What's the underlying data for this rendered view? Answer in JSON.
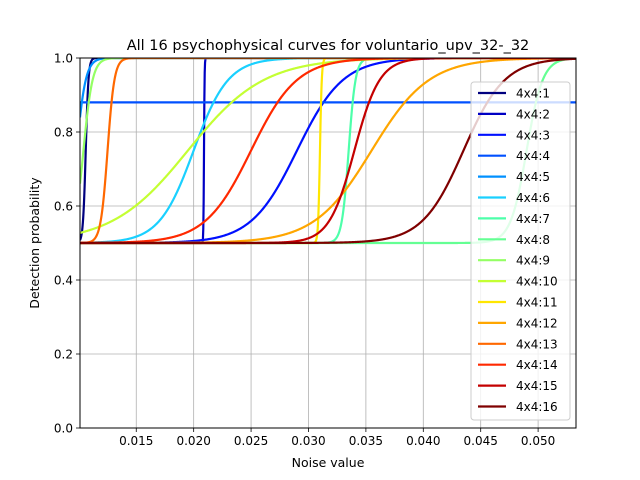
{
  "chart_data": {
    "type": "line",
    "title": "All 16 psychophysical curves for voluntario_upv_32-_32",
    "xlabel": "Noise value",
    "ylabel": "Detection probability",
    "xlim": [
      0.0101,
      0.0533
    ],
    "ylim": [
      0.0,
      1.0
    ],
    "xticks": [
      0.015,
      0.02,
      0.025,
      0.03,
      0.035,
      0.04,
      0.045,
      0.05
    ],
    "xtick_labels": [
      "0.015",
      "0.020",
      "0.025",
      "0.030",
      "0.035",
      "0.040",
      "0.045",
      "0.050"
    ],
    "yticks": [
      0.0,
      0.2,
      0.4,
      0.6,
      0.8,
      1.0
    ],
    "ytick_labels": [
      "0.0",
      "0.2",
      "0.4",
      "0.6",
      "0.8",
      "1.0"
    ],
    "grid": true,
    "legend_position": "right",
    "series": [
      {
        "name": "4x4:1",
        "color": "#00007f",
        "kind": "logistic",
        "mu": 0.0106,
        "s": 0.00012
      },
      {
        "name": "4x4:2",
        "color": "#0000c4",
        "kind": "logistic",
        "mu": 0.0209,
        "s": 2.5e-05
      },
      {
        "name": "4x4:3",
        "color": "#0010ff",
        "kind": "logistic",
        "mu": 0.029,
        "s": 0.002
      },
      {
        "name": "4x4:4",
        "color": "#0050ff",
        "kind": "constant",
        "value": 0.88
      },
      {
        "name": "4x4:5",
        "color": "#0090ff",
        "kind": "logistic",
        "mu": 0.0098,
        "s": 0.0004
      },
      {
        "name": "4x4:6",
        "color": "#1ad0ff",
        "kind": "logistic",
        "mu": 0.02,
        "s": 0.0015
      },
      {
        "name": "4x4:7",
        "color": "#4dffaa",
        "kind": "logistic",
        "mu": 0.0335,
        "s": 0.0003
      },
      {
        "name": "4x4:8",
        "color": "#64ff93",
        "kind": "logistic",
        "mu": 0.049,
        "s": 0.0007
      },
      {
        "name": "4x4:9",
        "color": "#94ff64",
        "kind": "logistic",
        "mu": 0.0104,
        "s": 0.0004
      },
      {
        "name": "4x4:10",
        "color": "#c4ff33",
        "kind": "logistic",
        "mu": 0.0195,
        "s": 0.0033
      },
      {
        "name": "4x4:11",
        "color": "#ffe600",
        "kind": "logistic",
        "mu": 0.031,
        "s": 8e-05
      },
      {
        "name": "4x4:12",
        "color": "#ffa600",
        "kind": "logistic",
        "mu": 0.0355,
        "s": 0.0025
      },
      {
        "name": "4x4:13",
        "color": "#ff6800",
        "kind": "logistic",
        "mu": 0.0125,
        "s": 0.0003
      },
      {
        "name": "4x4:14",
        "color": "#ff2900",
        "kind": "logistic",
        "mu": 0.025,
        "s": 0.002
      },
      {
        "name": "4x4:15",
        "color": "#c40000",
        "kind": "logistic",
        "mu": 0.034,
        "s": 0.0011
      },
      {
        "name": "4x4:16",
        "color": "#7f0000",
        "kind": "logistic",
        "mu": 0.0435,
        "s": 0.0018
      }
    ]
  }
}
